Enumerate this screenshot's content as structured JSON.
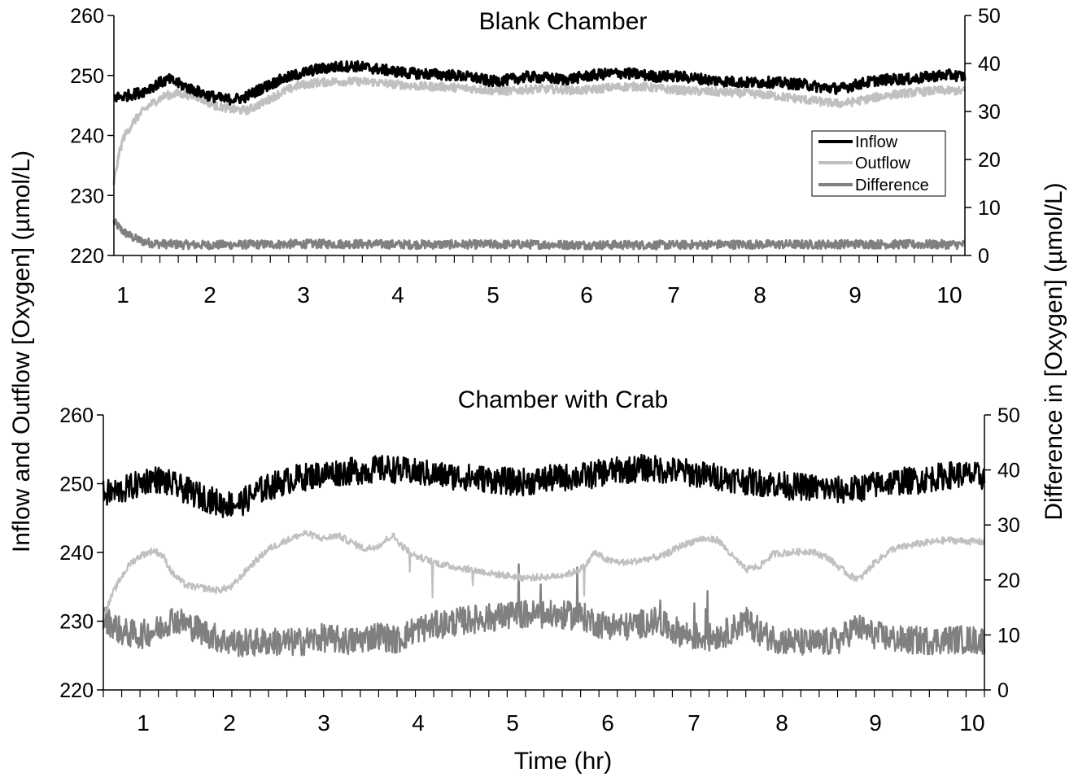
{
  "figure": {
    "left_axis_title": "Inflow and Outflow [Oxygen]  (µmol/L)",
    "right_axis_title": "Difference in [Oxygen]  (µmol/L)",
    "x_axis_title": "Time (hr)"
  },
  "chart_data": [
    {
      "type": "line",
      "title": "Blank Chamber",
      "xlabel": "",
      "y_left": {
        "ticks": [
          "220",
          "230",
          "240",
          "250",
          "260"
        ],
        "ylim": [
          220,
          260
        ]
      },
      "y_right": {
        "ticks": [
          "0",
          "10",
          "20",
          "30",
          "40",
          "50"
        ],
        "ylim": [
          0,
          50
        ]
      },
      "x_ticks": [
        "1",
        "2",
        "3",
        "4",
        "5",
        "6",
        "7",
        "8",
        "9",
        "10"
      ],
      "xlim": [
        0.9,
        10.15
      ],
      "legend": {
        "placement": "right, upper-middle",
        "entries": [
          "Inflow",
          "Outflow",
          "Difference"
        ]
      },
      "series": [
        {
          "name": "Inflow",
          "axis": "left",
          "color": "#000000",
          "x": [
            0.9,
            1.0,
            1.2,
            1.4,
            1.5,
            1.7,
            1.9,
            2.1,
            2.3,
            2.5,
            2.7,
            2.9,
            3.1,
            3.3,
            3.5,
            3.7,
            3.9,
            4.1,
            4.4,
            4.6,
            4.8,
            5.0,
            5.2,
            5.4,
            5.6,
            5.8,
            6.0,
            6.2,
            6.4,
            6.6,
            6.8,
            7.0,
            7.2,
            7.4,
            7.6,
            7.8,
            8.0,
            8.2,
            8.4,
            8.6,
            8.8,
            9.0,
            9.2,
            9.4,
            9.6,
            9.8,
            10.0,
            10.15
          ],
          "y": [
            246.3,
            246.5,
            247.2,
            248.8,
            249.3,
            248.0,
            246.8,
            246.0,
            246.2,
            247.8,
            249.2,
            250.2,
            251.0,
            251.4,
            251.6,
            251.2,
            250.8,
            250.4,
            250.2,
            250.0,
            249.7,
            249.0,
            249.3,
            249.8,
            249.6,
            249.3,
            249.8,
            250.2,
            250.4,
            250.2,
            249.8,
            249.9,
            249.6,
            249.2,
            249.0,
            248.8,
            248.9,
            248.7,
            248.5,
            248.0,
            247.8,
            248.6,
            249.2,
            249.4,
            249.4,
            249.9,
            250.1,
            249.8
          ]
        },
        {
          "name": "Outflow",
          "axis": "left",
          "color": "#c0c0c0",
          "x": [
            0.9,
            0.95,
            1.0,
            1.1,
            1.2,
            1.3,
            1.45,
            1.6,
            1.8,
            2.0,
            2.2,
            2.35,
            2.5,
            2.7,
            2.9,
            3.1,
            3.3,
            3.5,
            3.7,
            3.9,
            4.2,
            4.5,
            4.8,
            5.0,
            5.2,
            5.5,
            5.8,
            6.0,
            6.3,
            6.6,
            6.9,
            7.2,
            7.5,
            7.8,
            8.1,
            8.4,
            8.6,
            8.8,
            9.0,
            9.3,
            9.6,
            9.9,
            10.15
          ],
          "y": [
            232.0,
            236.5,
            239.5,
            242.0,
            243.8,
            245.2,
            246.6,
            247.0,
            246.5,
            245.0,
            244.3,
            244.2,
            245.3,
            247.0,
            248.3,
            248.8,
            249.0,
            249.0,
            248.9,
            248.6,
            248.2,
            248.1,
            247.8,
            247.5,
            247.4,
            247.8,
            247.6,
            247.5,
            248.0,
            248.2,
            247.7,
            247.4,
            247.2,
            247.0,
            246.6,
            246.0,
            245.6,
            245.3,
            245.8,
            246.7,
            247.2,
            247.5,
            247.4
          ]
        },
        {
          "name": "Difference",
          "axis": "right",
          "color": "#808080",
          "x": [
            0.9,
            0.95,
            1.0,
            1.1,
            1.2,
            1.3,
            1.4,
            1.6,
            1.8,
            2.0,
            2.5,
            3.0,
            3.5,
            4.0,
            4.5,
            5.0,
            5.5,
            6.0,
            6.5,
            7.0,
            7.5,
            8.0,
            8.5,
            9.0,
            9.5,
            10.0,
            10.15
          ],
          "y": [
            7.0,
            6.0,
            5.0,
            3.8,
            3.0,
            2.6,
            2.4,
            2.3,
            2.2,
            2.2,
            2.3,
            2.4,
            2.4,
            2.3,
            2.3,
            2.3,
            2.3,
            2.2,
            2.2,
            2.2,
            2.3,
            2.3,
            2.3,
            2.4,
            2.3,
            2.3,
            2.3
          ]
        }
      ]
    },
    {
      "type": "line",
      "title": "Chamber with Crab",
      "xlabel": "Time (hr)",
      "y_left": {
        "ticks": [
          "220",
          "230",
          "240",
          "250",
          "260"
        ],
        "ylim": [
          220,
          260
        ]
      },
      "y_right": {
        "ticks": [
          "0",
          "10",
          "20",
          "30",
          "40",
          "50"
        ],
        "ylim": [
          0,
          50
        ]
      },
      "x_ticks": [
        "1",
        "2",
        "3",
        "4",
        "5",
        "6",
        "7",
        "8",
        "9",
        "10"
      ],
      "xlim": [
        0.6,
        10.2
      ],
      "series": [
        {
          "name": "Inflow",
          "axis": "left",
          "color": "#000000",
          "x": [
            0.6,
            0.8,
            1.0,
            1.1,
            1.2,
            1.4,
            1.6,
            1.8,
            1.9,
            2.1,
            2.3,
            2.5,
            2.7,
            2.9,
            3.1,
            3.3,
            3.5,
            3.7,
            3.9,
            4.1,
            4.3,
            4.5,
            4.7,
            4.9,
            5.1,
            5.3,
            5.5,
            5.7,
            5.9,
            6.1,
            6.3,
            6.5,
            6.7,
            6.9,
            7.1,
            7.3,
            7.5,
            7.7,
            7.9,
            8.1,
            8.3,
            8.5,
            8.7,
            8.9,
            9.1,
            9.3,
            9.5,
            9.7,
            9.9,
            10.2
          ],
          "y": [
            248.5,
            249.0,
            250.0,
            250.7,
            250.6,
            249.6,
            248.5,
            247.5,
            247.0,
            247.2,
            249.0,
            250.0,
            250.8,
            251.2,
            251.6,
            251.8,
            252.0,
            252.2,
            251.8,
            251.5,
            251.2,
            251.0,
            250.8,
            250.5,
            250.2,
            250.4,
            250.8,
            251.0,
            251.2,
            251.8,
            252.0,
            252.3,
            252.0,
            251.8,
            251.3,
            251.0,
            250.6,
            250.2,
            250.0,
            249.6,
            249.5,
            249.2,
            249.0,
            249.5,
            250.1,
            250.4,
            250.5,
            251.0,
            251.4,
            251.0
          ]
        },
        {
          "name": "Outflow",
          "axis": "left",
          "color": "#c0c0c0",
          "x": [
            0.6,
            0.7,
            0.8,
            0.9,
            1.0,
            1.15,
            1.25,
            1.35,
            1.5,
            1.7,
            1.85,
            2.0,
            2.2,
            2.4,
            2.6,
            2.8,
            3.0,
            3.15,
            3.3,
            3.45,
            3.6,
            3.75,
            3.85,
            4.0,
            4.3,
            4.6,
            4.9,
            5.2,
            5.5,
            5.7,
            5.85,
            5.95,
            6.1,
            6.3,
            6.5,
            6.7,
            6.9,
            7.1,
            7.3,
            7.45,
            7.6,
            7.75,
            7.9,
            8.1,
            8.3,
            8.5,
            8.6,
            8.75,
            8.85,
            9.0,
            9.2,
            9.5,
            9.8,
            10.2
          ],
          "y": [
            230.5,
            234.0,
            236.5,
            238.5,
            239.5,
            240.3,
            239.5,
            237.0,
            235.2,
            234.8,
            234.5,
            235.0,
            238.0,
            240.5,
            241.8,
            242.8,
            242.0,
            242.5,
            241.5,
            240.5,
            241.0,
            242.5,
            241.0,
            239.5,
            238.2,
            237.5,
            236.8,
            236.3,
            236.5,
            237.0,
            238.0,
            240.0,
            238.8,
            238.5,
            239.0,
            239.5,
            241.0,
            242.0,
            241.8,
            239.5,
            237.5,
            238.0,
            239.8,
            240.0,
            240.2,
            239.2,
            238.0,
            236.5,
            236.2,
            238.5,
            240.5,
            241.3,
            241.8,
            241.5
          ]
        },
        {
          "name": "Difference",
          "axis": "right",
          "color": "#808080",
          "x": [
            0.6,
            0.7,
            0.8,
            1.0,
            1.2,
            1.35,
            1.5,
            1.7,
            1.9,
            2.1,
            2.4,
            2.7,
            3.0,
            3.3,
            3.6,
            3.8,
            4.0,
            4.3,
            4.6,
            4.9,
            5.2,
            5.5,
            5.8,
            6.0,
            6.3,
            6.6,
            6.8,
            7.0,
            7.2,
            7.4,
            7.6,
            7.8,
            8.0,
            8.3,
            8.6,
            8.8,
            9.0,
            9.3,
            9.6,
            9.9,
            10.2
          ],
          "y": [
            13.0,
            12.0,
            10.5,
            10.0,
            11.0,
            13.0,
            12.0,
            10.5,
            9.0,
            8.5,
            8.8,
            8.6,
            9.5,
            8.8,
            10.0,
            9.0,
            11.0,
            12.0,
            12.8,
            13.3,
            13.8,
            13.6,
            13.5,
            12.0,
            11.5,
            12.5,
            11.0,
            9.8,
            9.5,
            10.5,
            12.5,
            10.0,
            9.0,
            8.5,
            8.8,
            11.5,
            10.0,
            9.0,
            9.0,
            9.2,
            9.0
          ]
        }
      ]
    }
  ]
}
